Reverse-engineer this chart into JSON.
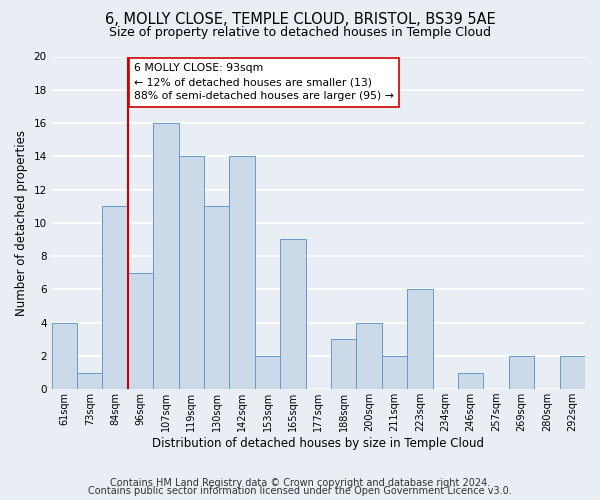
{
  "title": "6, MOLLY CLOSE, TEMPLE CLOUD, BRISTOL, BS39 5AE",
  "subtitle": "Size of property relative to detached houses in Temple Cloud",
  "xlabel": "Distribution of detached houses by size in Temple Cloud",
  "ylabel": "Number of detached properties",
  "bin_labels": [
    "61sqm",
    "73sqm",
    "84sqm",
    "96sqm",
    "107sqm",
    "119sqm",
    "130sqm",
    "142sqm",
    "153sqm",
    "165sqm",
    "177sqm",
    "188sqm",
    "200sqm",
    "211sqm",
    "223sqm",
    "234sqm",
    "246sqm",
    "257sqm",
    "269sqm",
    "280sqm",
    "292sqm"
  ],
  "bar_heights": [
    4,
    1,
    11,
    7,
    16,
    14,
    11,
    14,
    2,
    9,
    0,
    3,
    4,
    2,
    6,
    0,
    1,
    0,
    2,
    0,
    2
  ],
  "bar_color": "#ccd9e8",
  "bar_edge_color": "#6699cc",
  "vline_x_label": "96sqm",
  "vline_color": "#cc0000",
  "annotation_line1": "6 MOLLY CLOSE: 93sqm",
  "annotation_line2": "← 12% of detached houses are smaller (13)",
  "annotation_line3": "88% of semi-detached houses are larger (95) →",
  "annotation_box_color": "#ffffff",
  "annotation_box_edge": "#cc0000",
  "ylim": [
    0,
    20
  ],
  "yticks": [
    0,
    2,
    4,
    6,
    8,
    10,
    12,
    14,
    16,
    18,
    20
  ],
  "footer_line1": "Contains HM Land Registry data © Crown copyright and database right 2024.",
  "footer_line2": "Contains public sector information licensed under the Open Government Licence v3.0.",
  "bg_color": "#e8eef4",
  "grid_color": "#ffffff",
  "title_fontsize": 10.5,
  "subtitle_fontsize": 9,
  "tick_fontsize": 7,
  "ylabel_fontsize": 8.5,
  "xlabel_fontsize": 8.5,
  "annotation_fontsize": 7.8,
  "footer_fontsize": 7
}
